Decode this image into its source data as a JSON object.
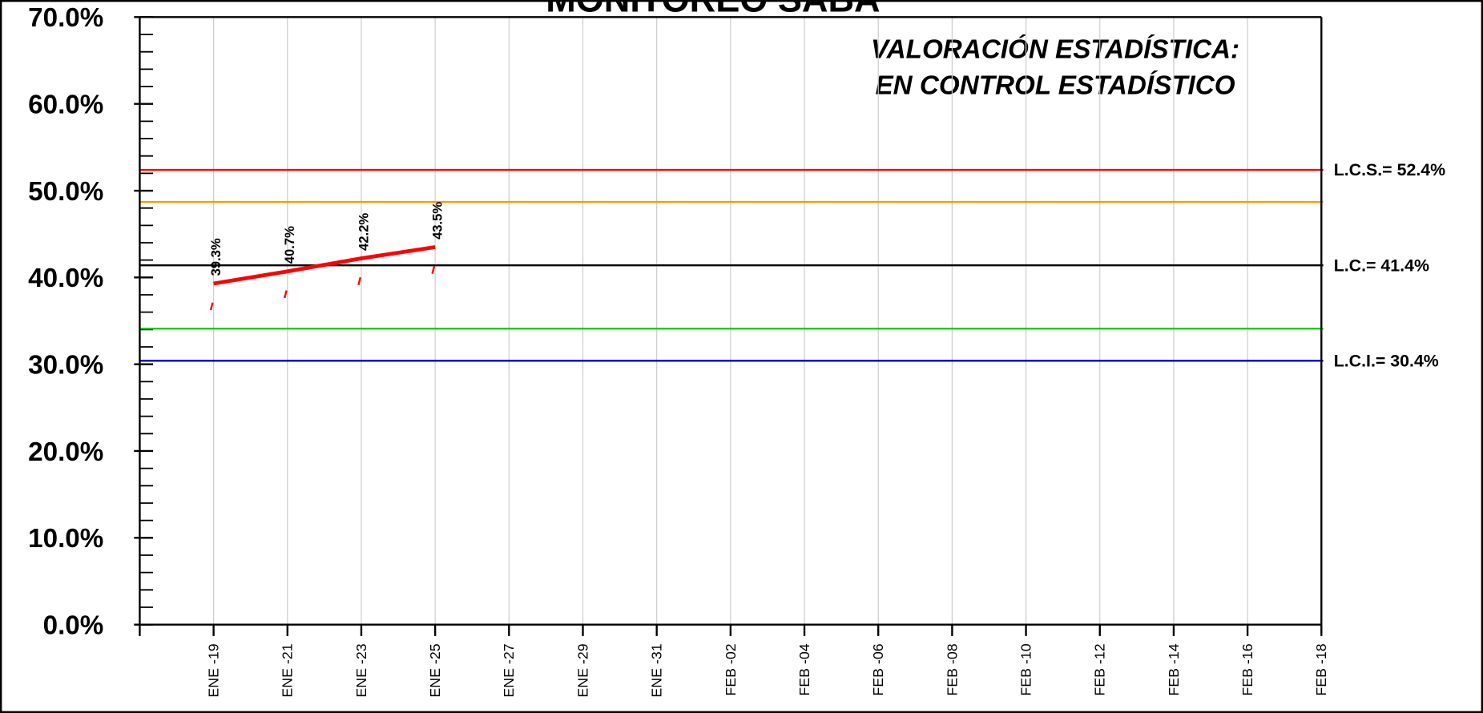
{
  "chart_data": {
    "type": "line",
    "title": "MONITOREO SABA",
    "annotation": [
      "VALORACIÓN ESTADÍSTICA:",
      "EN CONTROL ESTADÍSTICO"
    ],
    "categories": [
      "ENE -19",
      "ENE -21",
      "ENE -23",
      "ENE -25",
      "ENE -27",
      "ENE -29",
      "ENE -31",
      "FEB -02",
      "FEB -04",
      "FEB -06",
      "FEB -08",
      "FEB -10",
      "FEB -12",
      "FEB -14",
      "FEB -16",
      "FEB -18"
    ],
    "series": [
      {
        "color": "#ff0000",
        "values": [
          39.3,
          40.7,
          42.2,
          43.5,
          null,
          null,
          null,
          null,
          null,
          null,
          null,
          null,
          null,
          null,
          null,
          null
        ],
        "value_labels": [
          "39.3%",
          "40.7%",
          "42.2%",
          "43.5%",
          null,
          null,
          null,
          null,
          null,
          null,
          null,
          null,
          null,
          null,
          null,
          null
        ]
      }
    ],
    "reference_lines": [
      {
        "value": 52.4,
        "color": "#ff0000",
        "label": "L.C.S.= 52.4%"
      },
      {
        "value": 48.7,
        "color": "#ff9900"
      },
      {
        "value": 41.4,
        "color": "#000000",
        "label": "L.C.= 41.4%"
      },
      {
        "value": 34.1,
        "color": "#00cc00"
      },
      {
        "value": 30.4,
        "color": "#0000cc",
        "label": "L.C.I.= 30.4%"
      }
    ],
    "ylim": [
      0,
      70
    ],
    "yticks": [
      {
        "value": 0,
        "label": "0.0%"
      },
      {
        "value": 10,
        "label": "10.0%"
      },
      {
        "value": 20,
        "label": "20.0%"
      },
      {
        "value": 30,
        "label": "30.0%"
      },
      {
        "value": 40,
        "label": "40.0%"
      },
      {
        "value": 50,
        "label": "50.0%"
      },
      {
        "value": 60,
        "label": "60.0%"
      },
      {
        "value": 70,
        "label": "70.0%"
      }
    ],
    "grid": true
  }
}
